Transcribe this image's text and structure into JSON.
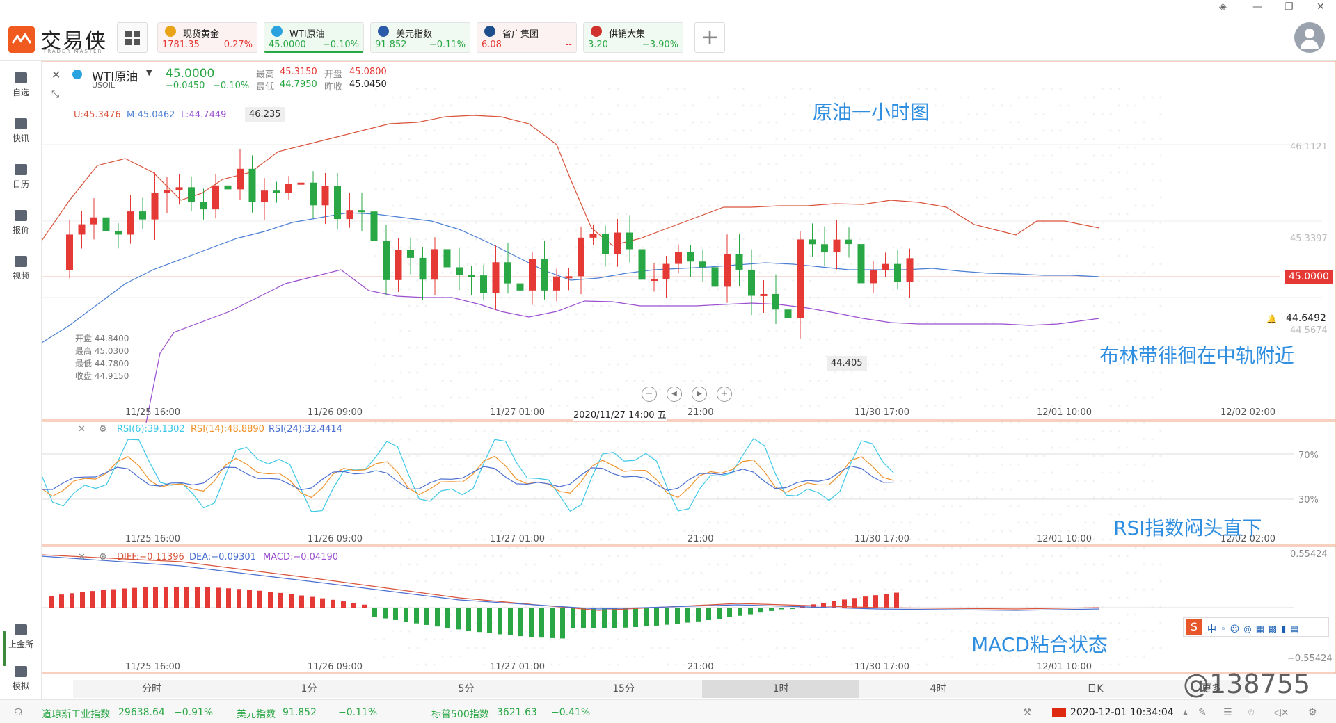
{
  "app": {
    "name": "交易侠",
    "sub": "TRADER MASTER"
  },
  "quote_tabs": [
    {
      "name": "现货黄金",
      "price": "1781.35",
      "change": "0.27%",
      "dir": "up",
      "icon_color": "#e8a317"
    },
    {
      "name": "WTI原油",
      "price": "45.0000",
      "change": "−0.10%",
      "dir": "dn",
      "icon_color": "#2aa2e0"
    },
    {
      "name": "美元指数",
      "price": "91.852",
      "change": "−0.11%",
      "dir": "dn",
      "icon_color": "#2b5aa8"
    },
    {
      "name": "省广集团",
      "price": "6.08",
      "change": "--",
      "dir": "up",
      "icon_color": "#1f4e8c"
    },
    {
      "name": "供销大集",
      "price": "3.20",
      "change": "−3.90%",
      "dir": "dn",
      "icon_color": "#d0312d"
    }
  ],
  "sidebar": {
    "items": [
      {
        "label": "自选"
      },
      {
        "label": "快讯"
      },
      {
        "label": "日历"
      },
      {
        "label": "报价"
      },
      {
        "label": "视频"
      }
    ],
    "bottom_items": [
      {
        "label": "上金所"
      },
      {
        "label": "模拟"
      }
    ]
  },
  "instrument": {
    "name": "WTI原油",
    "code": "USOIL",
    "price": "45.0000",
    "change": "−0.0450",
    "change_pct": "−0.10%",
    "high_label": "最高",
    "high": "45.3150",
    "open_label": "开盘",
    "open": "45.0800",
    "low_label": "最低",
    "low": "44.7950",
    "prev_label": "昨收",
    "prev": "45.0450"
  },
  "boll_legend": {
    "u": "U:45.3476",
    "m": "M:45.0462",
    "l": "L:44.7449"
  },
  "price_axis": {
    "p1": "46.1121",
    "p2": "45.3397",
    "cur": "45.0000",
    "alert": "44.6492",
    "p3": "44.5674"
  },
  "max_label": "46.235",
  "min_label": "44.405",
  "ohlc_box": {
    "open": "开盘 44.8400",
    "high": "最高 45.0300",
    "low": "最低 44.7800",
    "close": "收盘 44.9150"
  },
  "time_axis": [
    "11/25 16:00",
    "11/26 09:00",
    "11/27 01:00",
    "21:00",
    "11/30 17:00",
    "12/01 10:00",
    "12/02 02:00"
  ],
  "crosshair_time": "2020/11/27 14:00 五",
  "rsi_legend": {
    "r6": "RSI(6):39.1302",
    "r14": "RSI(14):48.8890",
    "r24": "RSI(24):32.4414"
  },
  "rsi_axis": {
    "a": "70%",
    "b": "30%"
  },
  "macd_legend": {
    "diff": "DIFF:−0.11396",
    "dea": "DEA:−0.09301",
    "macd": "MACD:−0.04190"
  },
  "macd_axis": {
    "a": "0.55424",
    "b": "−0.55424"
  },
  "annotations": {
    "title": "原油一小时图",
    "boll": "布林带徘徊在中轨附近",
    "rsi": "RSI指数闷头直下",
    "macd": "MACD粘合状态"
  },
  "periods": [
    "分时",
    "1分",
    "5分",
    "15分",
    "1时",
    "4时",
    "日K",
    "更多"
  ],
  "active_period": "1时",
  "status": {
    "dji_name": "道琼斯工业指数",
    "dji": "29638.64",
    "dji_ch": "−0.91%",
    "usd_name": "美元指数",
    "usd": "91.852",
    "usd_ch": "−0.11%",
    "spx_name": "标普500指数",
    "spx": "3621.63",
    "spx_ch": "−0.41%",
    "datetime": "2020-12-01 10:34:04"
  },
  "watermark": "@138755",
  "colors": {
    "up": "#e53935",
    "down": "#2aa745",
    "boll_upper": "#d9533b",
    "boll_mid": "#4a7fd4",
    "boll_lower": "#9a4fd0",
    "rsi6": "#3cc8e6",
    "rsi14": "#f0922a",
    "rsi24": "#4a6fd0",
    "annotation": "#2f8ee0"
  },
  "chart_data": {
    "type": "candlestick",
    "title": "原油一小时图",
    "ylim": [
      44.2,
      46.3
    ]
  }
}
